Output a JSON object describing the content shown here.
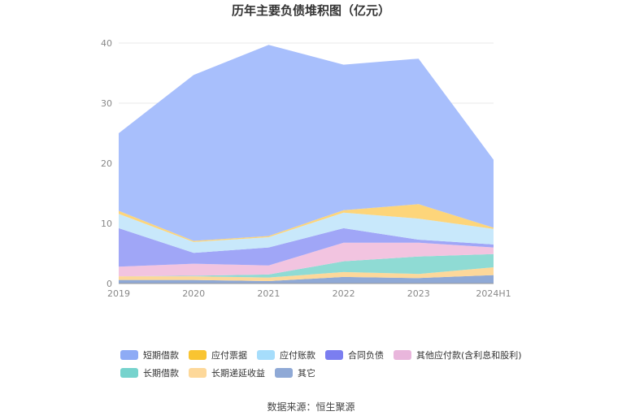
{
  "chart_data": {
    "type": "area",
    "stacked": true,
    "title": "历年主要负债堆积图（亿元）",
    "categories": [
      "2019",
      "2020",
      "2021",
      "2022",
      "2023",
      "2024H1"
    ],
    "ylim": [
      0,
      40
    ],
    "yticks": [
      0,
      10,
      20,
      30,
      40
    ],
    "grid": true,
    "legend_position": "bottom",
    "series": [
      {
        "name": "其它",
        "color": "#8fa9d6",
        "values": [
          0.6,
          0.6,
          0.4,
          1.1,
          0.9,
          1.4
        ]
      },
      {
        "name": "长期递延收益",
        "color": "#fdd89a",
        "values": [
          0.6,
          0.6,
          0.6,
          0.8,
          0.7,
          1.3
        ]
      },
      {
        "name": "长期借款",
        "color": "#8fdbd4",
        "values": [
          0.0,
          0.1,
          0.5,
          1.8,
          2.9,
          2.2
        ]
      },
      {
        "name": "其他应付款(含利息和股利)",
        "color": "#f2c4e0",
        "values": [
          1.6,
          2.0,
          1.5,
          3.1,
          2.3,
          1.1
        ]
      },
      {
        "name": "合同负债",
        "color": "#a0a6f7",
        "values": [
          6.4,
          1.8,
          3.0,
          2.4,
          0.5,
          0.5
        ]
      },
      {
        "name": "应付账款",
        "color": "#c8e8fb",
        "values": [
          2.4,
          1.8,
          1.7,
          2.6,
          3.5,
          2.6
        ]
      },
      {
        "name": "应付票据",
        "color": "#fdd57a",
        "values": [
          0.5,
          0.2,
          0.2,
          0.4,
          2.4,
          0.2
        ]
      },
      {
        "name": "短期借款",
        "color": "#a8bffc",
        "values": [
          12.9,
          27.6,
          31.8,
          24.2,
          24.2,
          11.3
        ]
      }
    ],
    "legend_order": [
      "短期借款",
      "应付票据",
      "应付账款",
      "合同负债",
      "其他应付款(含利息和股利)",
      "长期借款",
      "长期递延收益",
      "其它"
    ],
    "legend_colors": {
      "短期借款": "#8eabf5",
      "应付票据": "#f9c431",
      "应付账款": "#a6ddfb",
      "合同负债": "#7b7ef0",
      "其他应付款(含利息和股利)": "#e9b6dc",
      "长期借款": "#76d3cd",
      "长期递延收益": "#fdd89a",
      "其它": "#8fa9d6"
    }
  },
  "source": "数据来源：恒生聚源"
}
